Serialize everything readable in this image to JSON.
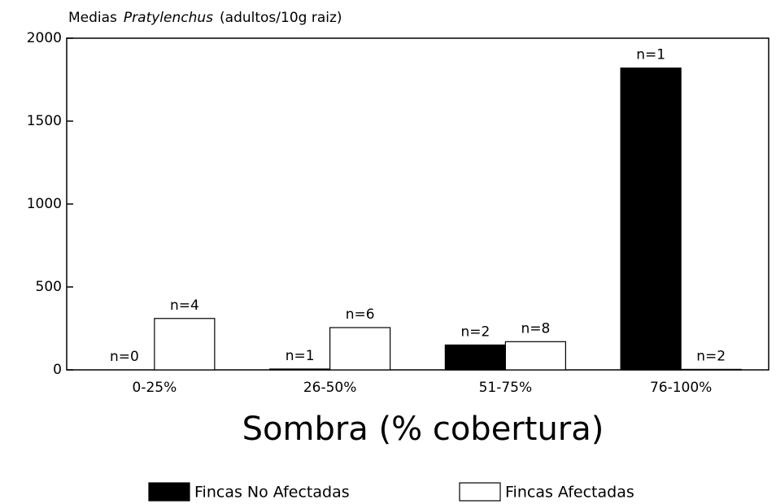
{
  "chart_data": {
    "type": "bar",
    "title": [
      "Medias",
      "Pratylenchus",
      "(adultos/10g raiz)"
    ],
    "x_label": "Sombra (% cobertura)",
    "categories": [
      "0-25%",
      "26-50%",
      "51-75%",
      "76-100%"
    ],
    "series": [
      {
        "name": "Fincas No Afectadas",
        "color": "#000000",
        "values": [
          0,
          5,
          150,
          1820
        ],
        "labels": [
          "n=0",
          "n=1",
          "n=2",
          "n=1"
        ]
      },
      {
        "name": "Fincas Afectadas",
        "color": "#ffffff",
        "values": [
          310,
          255,
          170,
          3
        ],
        "labels": [
          "n=4",
          "n=6",
          "n=8",
          "n=2"
        ]
      }
    ],
    "ylim": [
      0,
      2000
    ],
    "yticks": [
      0,
      500,
      1000,
      1500,
      2000
    ],
    "legend": "bottom"
  }
}
